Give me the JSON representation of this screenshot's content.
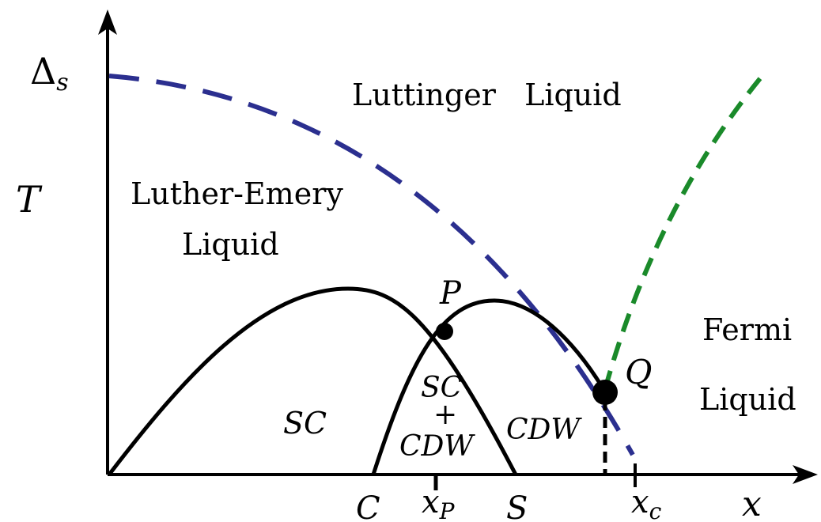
{
  "axes": {
    "x_label": "x",
    "y_label": "T",
    "y_tick_main": "Δ",
    "y_tick_sub": "s"
  },
  "x_ticks": {
    "C": "C",
    "xP_main": "x",
    "xP_sub": "P",
    "S": "S",
    "xc_main": "x",
    "xc_sub": "c"
  },
  "regions": {
    "luttinger": "Luttinger   Liquid",
    "luther_emery_line1": "Luther-Emery",
    "luther_emery_line2": "Liquid",
    "fermi_line1": "Fermi",
    "fermi_line2": "Liquid",
    "sc": "SC",
    "sc_cdw_line1": "SC",
    "sc_cdw_line2": "+",
    "sc_cdw_line3": "CDW",
    "cdw": "CDW"
  },
  "points": {
    "P": "P",
    "Q": "Q"
  },
  "colors": {
    "spin_gap_line": "#2b2f8f",
    "fermi_crossover_line": "#1a8a2a",
    "boundary_lines": "#000000"
  }
}
